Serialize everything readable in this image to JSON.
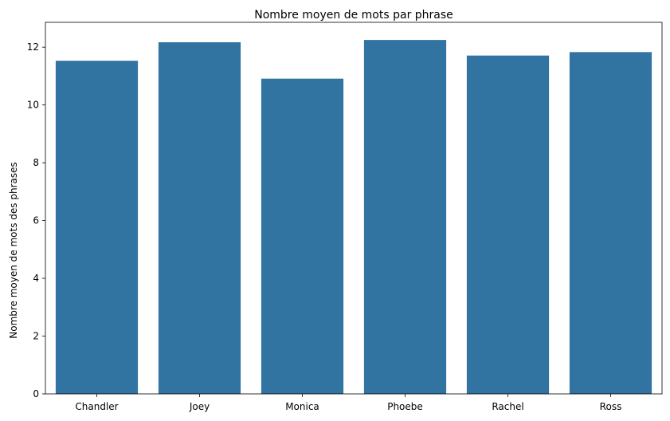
{
  "chart_data": {
    "type": "bar",
    "title": "Nombre moyen de mots par phrase",
    "xlabel": "",
    "ylabel": "Nombre moyen de mots des phrases",
    "categories": [
      "Chandler",
      "Joey",
      "Monica",
      "Phoebe",
      "Rachel",
      "Ross"
    ],
    "values": [
      11.53,
      12.17,
      10.91,
      12.25,
      11.71,
      11.83
    ],
    "ylim": [
      0,
      12.86
    ],
    "yticks": [
      0,
      2,
      4,
      6,
      8,
      10,
      12
    ],
    "grid": false,
    "bar_color": "#3274a1"
  }
}
